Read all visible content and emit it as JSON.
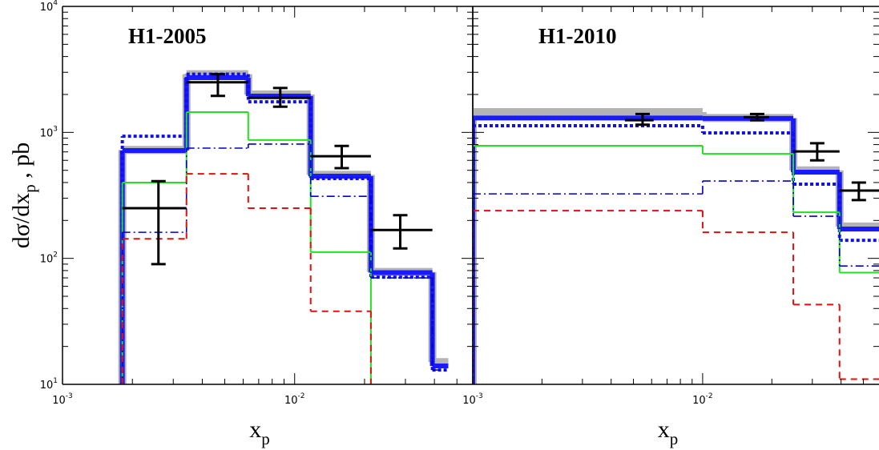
{
  "chart_data": [
    {
      "type": "histogram",
      "title": "H1-2005",
      "ylabel": {
        "main": "dσ/dx",
        "sub": "p",
        "tail": " , pb"
      },
      "xlabel": {
        "main": "x",
        "sub": "p"
      },
      "log_x": true,
      "log_y": true,
      "xlim": [
        0.001,
        0.0585
      ],
      "ylim": [
        10,
        10000
      ],
      "xticks": [
        {
          "value": 0.001,
          "label": "10",
          "exponent": "-3"
        },
        {
          "value": 0.01,
          "label": "10",
          "exponent": "-2"
        }
      ],
      "yticks": [
        {
          "value": 10,
          "label": "10",
          "exponent": "1"
        },
        {
          "value": 100,
          "label": "10",
          "exponent": "2"
        },
        {
          "value": 1000,
          "label": "10",
          "exponent": "3"
        },
        {
          "value": 10000,
          "label": "10",
          "exponent": "4"
        }
      ],
      "minor_tick_multiples": [
        2,
        3,
        4,
        5,
        6,
        7,
        8,
        9
      ],
      "bins": [
        0.00181,
        0.00342,
        0.00631,
        0.01172,
        0.0213,
        0.0392,
        0.0459
      ],
      "series": [
        {
          "style": "band",
          "color": "#b4b4b4",
          "values": [
            725,
            2900,
            2000,
            460,
            78,
            15
          ]
        },
        {
          "style": "solid-thick",
          "color": "#1a1aff",
          "values": [
            718,
            2716,
            1940,
            449,
            77,
            14
          ]
        },
        {
          "style": "dotted-thick",
          "color": "#1010ee",
          "values": [
            933,
            2900,
            1750,
            430,
            71,
            13
          ]
        },
        {
          "style": "solid-thin",
          "color": "#22e022",
          "values": [
            400,
            1450,
            870,
            112,
            null,
            null
          ]
        },
        {
          "style": "dash-dot",
          "color": "#0000cc",
          "values": [
            161,
            750,
            807,
            311,
            70,
            13
          ]
        },
        {
          "style": "dashed",
          "color": "#e01010",
          "values": [
            143,
            469,
            250,
            38,
            null,
            null
          ]
        }
      ],
      "points": {
        "color": "#000000",
        "x": [
          0.00259,
          0.00467,
          0.00867,
          0.01595,
          0.0285
        ],
        "y": [
          250,
          2500,
          1880,
          647,
          168
        ],
        "ylo": [
          90,
          1950,
          1600,
          520,
          120
        ],
        "yhi": [
          410,
          2900,
          2250,
          780,
          220
        ],
        "xlo": [
          0.00181,
          0.00342,
          0.00631,
          0.01172,
          0.0213
        ],
        "xhi": [
          0.00342,
          0.00631,
          0.01172,
          0.0213,
          0.0392
        ]
      }
    },
    {
      "type": "histogram",
      "title": "H1-2010",
      "xlabel": {
        "main": "x",
        "sub": "p"
      },
      "log_x": true,
      "log_y": true,
      "xlim": [
        0.001,
        0.0585
      ],
      "ylim": [
        10,
        10000
      ],
      "xticks": [
        {
          "value": 0.001,
          "label": "10",
          "exponent": "-3"
        },
        {
          "value": 0.01,
          "label": "10",
          "exponent": "-2"
        }
      ],
      "yticks": [
        10,
        100,
        1000,
        10000
      ],
      "minor_tick_multiples": [
        2,
        3,
        4,
        5,
        6,
        7,
        8,
        9
      ],
      "bins": [
        0.001,
        0.01,
        0.0248,
        0.0394,
        0.07
      ],
      "series": [
        {
          "style": "band",
          "color": "#b4b4b4",
          "values": [
            1450,
            1300,
            500,
            179
          ]
        },
        {
          "style": "solid-thick",
          "color": "#1a1aff",
          "values": [
            1300,
            1290,
            483,
            171
          ]
        },
        {
          "style": "dotted-thick",
          "color": "#1010ee",
          "values": [
            1130,
            990,
            388,
            139
          ]
        },
        {
          "style": "solid-thin",
          "color": "#22e022",
          "values": [
            783,
            676,
            232,
            77
          ]
        },
        {
          "style": "dash-dot",
          "color": "#0000cc",
          "values": [
            325,
            411,
            216,
            87
          ]
        },
        {
          "style": "dashed",
          "color": "#e01010",
          "values": [
            239,
            161,
            43,
            11
          ]
        }
      ],
      "points": {
        "color": "#000000",
        "x": [
          0.00548,
          0.01726,
          0.0315,
          0.0478
        ],
        "y": [
          1250,
          1320,
          706,
          345
        ],
        "ylo": [
          1150,
          1250,
          600,
          290
        ],
        "yhi": [
          1400,
          1400,
          820,
          400
        ],
        "xlo": [
          0.00459,
          0.01507,
          0.0248,
          0.0394
        ],
        "xhi": [
          0.00612,
          0.01946,
          0.0394,
          0.06
        ]
      }
    }
  ]
}
